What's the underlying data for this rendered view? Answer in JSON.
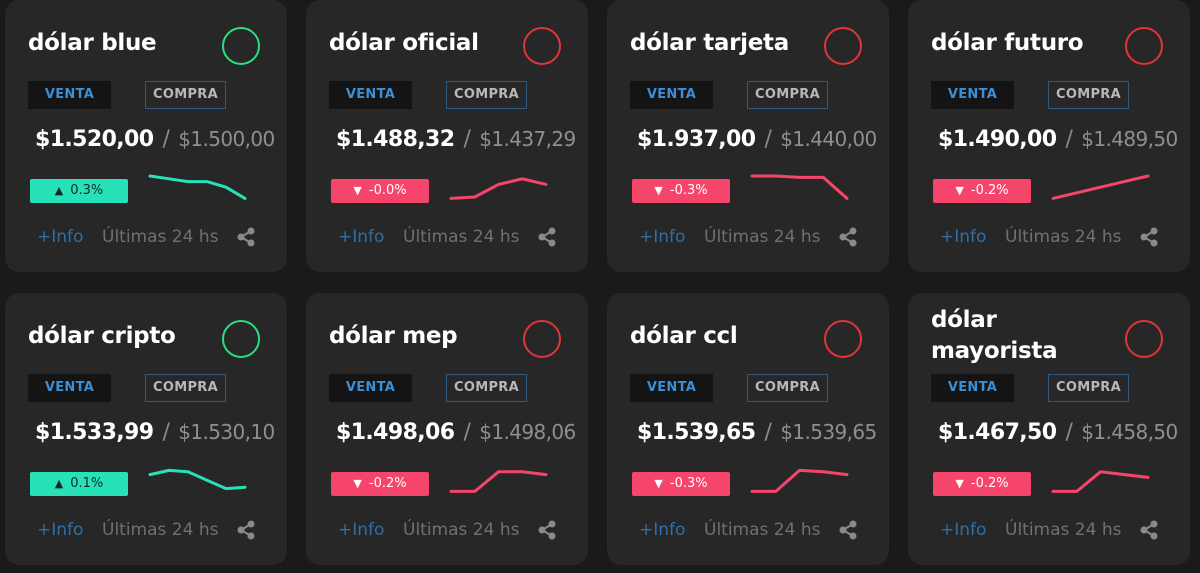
{
  "colors": {
    "up": "#27e2b8",
    "down": "#f6456b",
    "status_up": "#29e07f",
    "status_down": "#e0353a"
  },
  "cards": [
    {
      "title": "dólar blue",
      "venta_label": "VENTA",
      "compra_label": "COMPRA",
      "sell": "$1.520,00",
      "slash": "/",
      "buy": "$1.500,00",
      "change": "0.3%",
      "trend": "up",
      "spark": [
        10,
        9,
        8,
        8,
        6,
        2
      ],
      "info": "+Info",
      "period": "Últimas 24 hs",
      "status_icon": "circle-outline-icon",
      "share_icon": "share-icon"
    },
    {
      "title": "dólar oficial",
      "venta_label": "VENTA",
      "compra_label": "COMPRA",
      "sell": "$1.488,32",
      "slash": "/",
      "buy": "$1.437,29",
      "change": "-0.0%",
      "trend": "down",
      "spark": [
        2,
        2.5,
        7,
        9,
        7
      ],
      "info": "+Info",
      "period": "Últimas 24 hs",
      "status_icon": "circle-outline-icon",
      "share_icon": "share-icon"
    },
    {
      "title": "dólar tarjeta",
      "venta_label": "VENTA",
      "compra_label": "COMPRA",
      "sell": "$1.937,00",
      "slash": "/",
      "buy": "$1.440,00",
      "change": "-0.3%",
      "trend": "down",
      "spark": [
        10,
        10,
        9.5,
        9.5,
        2
      ],
      "info": "+Info",
      "period": "Últimas 24 hs",
      "status_icon": "circle-outline-icon",
      "share_icon": "share-icon"
    },
    {
      "title": "dólar futuro",
      "venta_label": "VENTA",
      "compra_label": "COMPRA",
      "sell": "$1.490,00",
      "slash": "/",
      "buy": "$1.489,50",
      "change": "-0.2%",
      "trend": "down",
      "spark": [
        2,
        4,
        6,
        8,
        10
      ],
      "info": "+Info",
      "period": "Últimas 24 hs",
      "status_icon": "circle-outline-icon",
      "share_icon": "share-icon"
    },
    {
      "title": "dólar cripto",
      "venta_label": "VENTA",
      "compra_label": "COMPRA",
      "sell": "$1.533,99",
      "slash": "/",
      "buy": "$1.530,10",
      "change": "0.1%",
      "trend": "up",
      "spark": [
        8,
        9.5,
        9,
        6,
        3,
        3.5
      ],
      "info": "+Info",
      "period": "Últimas 24 hs",
      "status_icon": "circle-outline-icon",
      "share_icon": "share-icon"
    },
    {
      "title": "dólar mep",
      "venta_label": "VENTA",
      "compra_label": "COMPRA",
      "sell": "$1.498,06",
      "slash": "/",
      "buy": "$1.498,06",
      "change": "-0.2%",
      "trend": "down",
      "spark": [
        2,
        2,
        9,
        9,
        8
      ],
      "info": "+Info",
      "period": "Últimas 24 hs",
      "status_icon": "circle-outline-icon",
      "share_icon": "share-icon"
    },
    {
      "title": "dólar ccl",
      "venta_label": "VENTA",
      "compra_label": "COMPRA",
      "sell": "$1.539,65",
      "slash": "/",
      "buy": "$1.539,65",
      "change": "-0.3%",
      "trend": "down",
      "spark": [
        2,
        2,
        9.5,
        9,
        8
      ],
      "info": "+Info",
      "period": "Últimas 24 hs",
      "status_icon": "circle-outline-icon",
      "share_icon": "share-icon"
    },
    {
      "title": "dólar mayorista",
      "venta_label": "VENTA",
      "compra_label": "COMPRA",
      "sell": "$1.467,50",
      "slash": "/",
      "buy": "$1.458,50",
      "change": "-0.2%",
      "trend": "down",
      "spark": [
        2,
        2,
        9,
        8,
        7
      ],
      "info": "+Info",
      "period": "Últimas 24 hs",
      "status_icon": "circle-outline-icon",
      "share_icon": "share-icon"
    }
  ]
}
